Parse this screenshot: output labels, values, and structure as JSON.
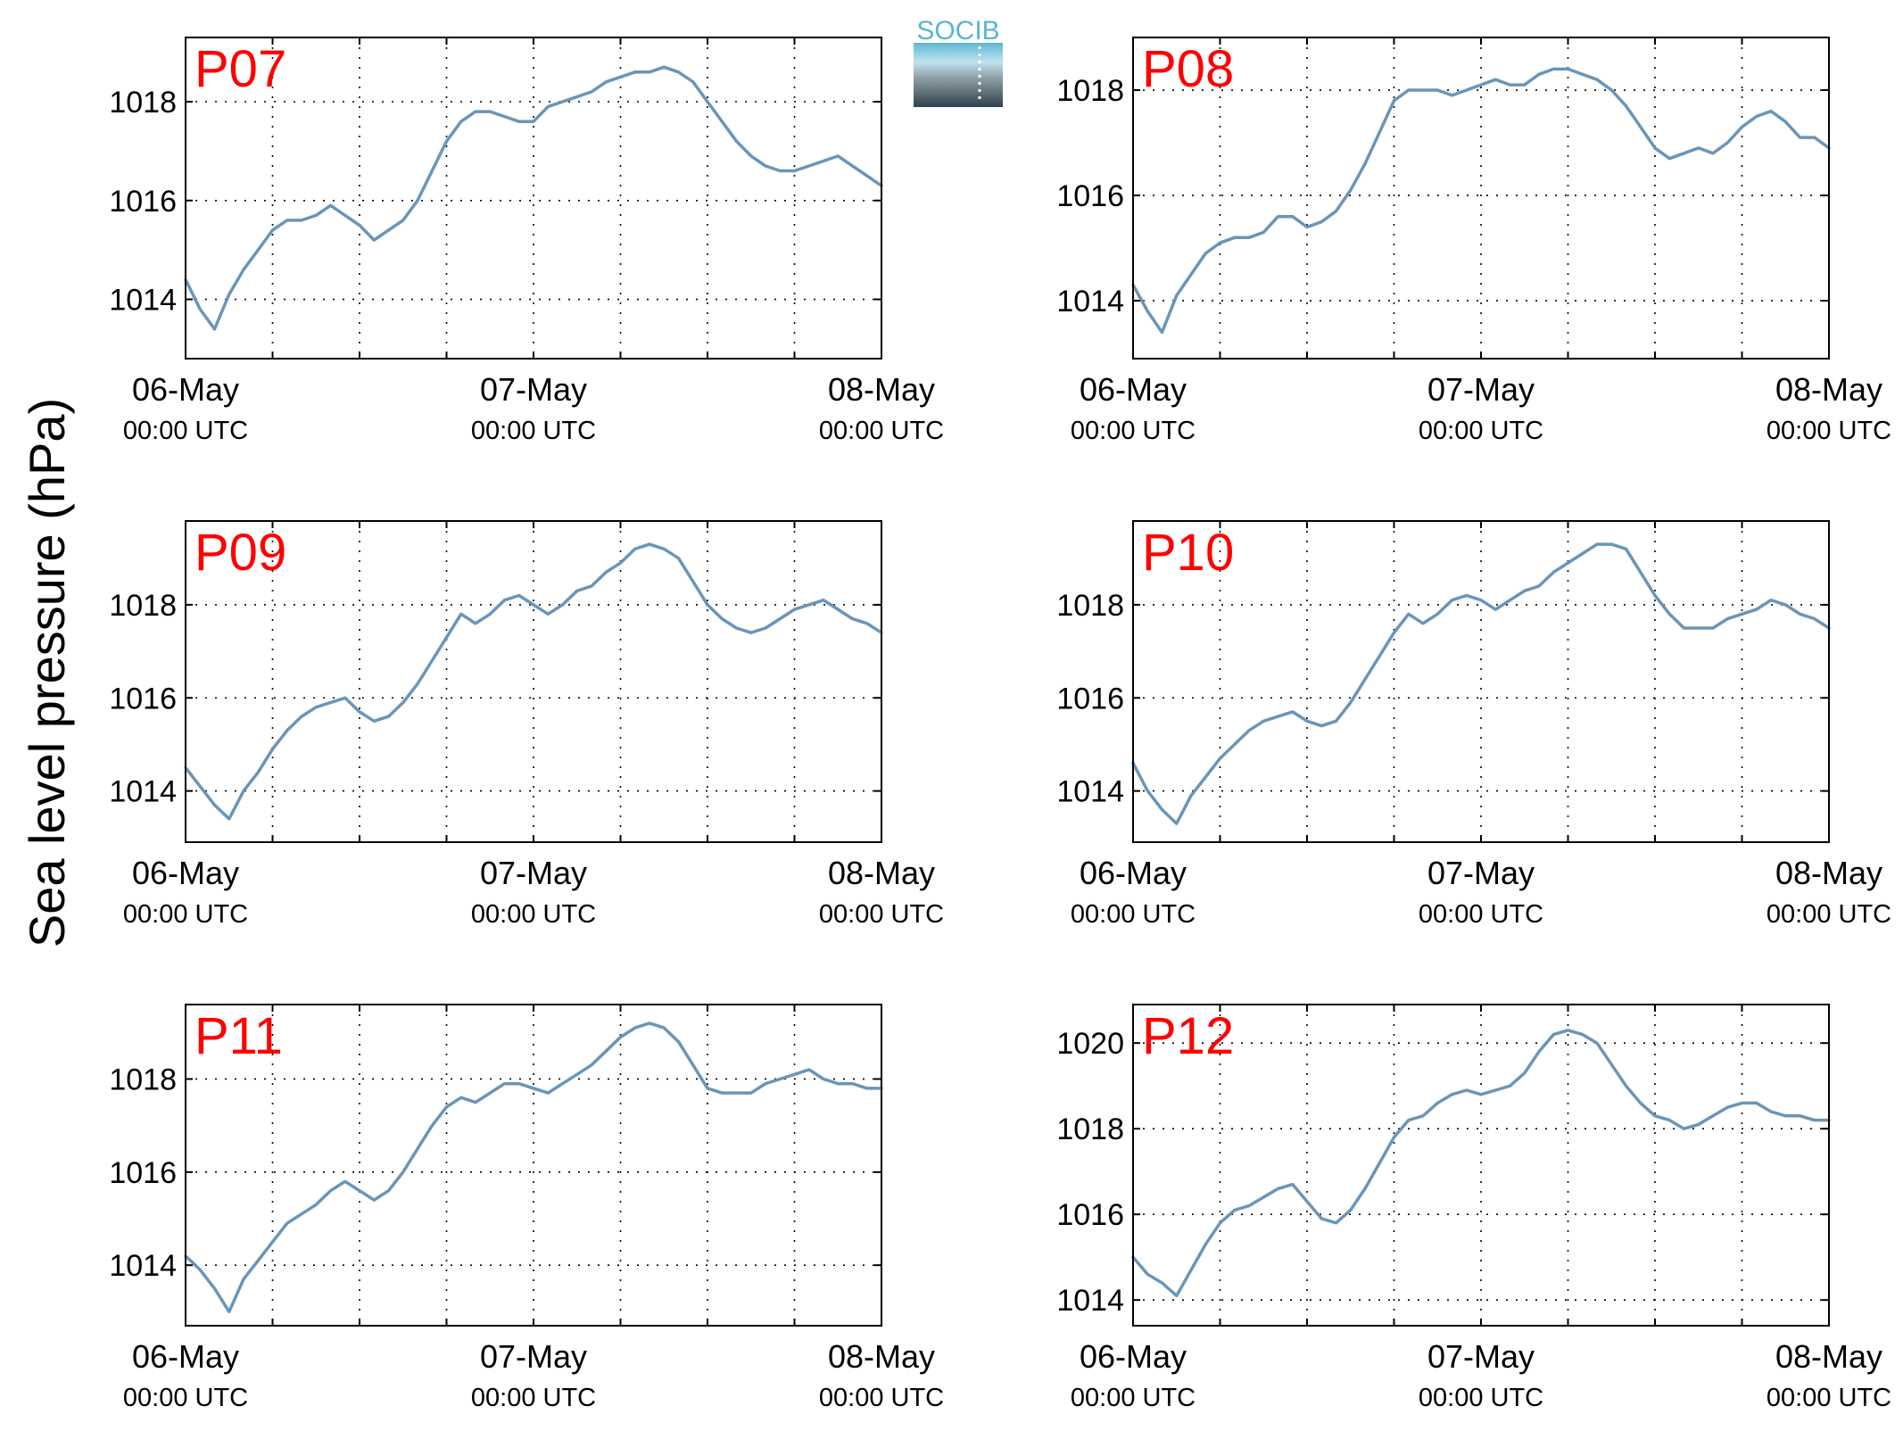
{
  "ylabel": "Sea level pressure (hPa)",
  "logo": {
    "text": "SOCIB"
  },
  "colors": {
    "line": "#6a95b8",
    "panel_label": "#ff0000",
    "axis": "#000000"
  },
  "x_axis": {
    "range": [
      "2014-05-06T00:00Z",
      "2014-05-08T00:00Z"
    ],
    "tick_labels": [
      {
        "date": "06-May",
        "time": "00:00 UTC"
      },
      {
        "date": "07-May",
        "time": "00:00 UTC"
      },
      {
        "date": "08-May",
        "time": "00:00 UTC"
      }
    ],
    "grid": true
  },
  "chart_data": [
    {
      "type": "line",
      "label": "P07",
      "ylim": [
        1012.8,
        1019.3
      ],
      "yticks": [
        1014,
        1016,
        1018
      ],
      "x_hours": [
        0,
        1,
        2,
        3,
        4,
        5,
        6,
        7,
        8,
        9,
        10,
        11,
        12,
        13,
        14,
        15,
        16,
        17,
        18,
        19,
        20,
        21,
        22,
        23,
        24,
        25,
        26,
        27,
        28,
        29,
        30,
        31,
        32,
        33,
        34,
        35,
        36,
        37,
        38,
        39,
        40,
        41,
        42,
        43,
        44,
        45,
        46,
        47,
        48
      ],
      "values": [
        1014.4,
        1013.8,
        1013.4,
        1014.1,
        1014.6,
        1015.0,
        1015.4,
        1015.6,
        1015.6,
        1015.7,
        1015.9,
        1015.7,
        1015.5,
        1015.2,
        1015.4,
        1015.6,
        1016.0,
        1016.6,
        1017.2,
        1017.6,
        1017.8,
        1017.8,
        1017.7,
        1017.6,
        1017.6,
        1017.9,
        1018.0,
        1018.1,
        1018.2,
        1018.4,
        1018.5,
        1018.6,
        1018.6,
        1018.7,
        1018.6,
        1018.4,
        1018.0,
        1017.6,
        1017.2,
        1016.9,
        1016.7,
        1016.6,
        1016.6,
        1016.7,
        1016.8,
        1016.9,
        1016.7,
        1016.5,
        1016.3
      ]
    },
    {
      "type": "line",
      "label": "P08",
      "ylim": [
        1012.9,
        1019.0
      ],
      "yticks": [
        1014,
        1016,
        1018
      ],
      "x_hours": [
        0,
        1,
        2,
        3,
        4,
        5,
        6,
        7,
        8,
        9,
        10,
        11,
        12,
        13,
        14,
        15,
        16,
        17,
        18,
        19,
        20,
        21,
        22,
        23,
        24,
        25,
        26,
        27,
        28,
        29,
        30,
        31,
        32,
        33,
        34,
        35,
        36,
        37,
        38,
        39,
        40,
        41,
        42,
        43,
        44,
        45,
        46,
        47,
        48
      ],
      "values": [
        1014.3,
        1013.8,
        1013.4,
        1014.1,
        1014.5,
        1014.9,
        1015.1,
        1015.2,
        1015.2,
        1015.3,
        1015.6,
        1015.6,
        1015.4,
        1015.5,
        1015.7,
        1016.1,
        1016.6,
        1017.2,
        1017.8,
        1018.0,
        1018.0,
        1018.0,
        1017.9,
        1018.0,
        1018.1,
        1018.2,
        1018.1,
        1018.1,
        1018.3,
        1018.4,
        1018.4,
        1018.3,
        1018.2,
        1018.0,
        1017.7,
        1017.3,
        1016.9,
        1016.7,
        1016.8,
        1016.9,
        1016.8,
        1017.0,
        1017.3,
        1017.5,
        1017.6,
        1017.4,
        1017.1,
        1017.1,
        1016.9
      ]
    },
    {
      "type": "line",
      "label": "P09",
      "ylim": [
        1012.9,
        1019.8
      ],
      "yticks": [
        1014,
        1016,
        1018
      ],
      "x_hours": [
        0,
        1,
        2,
        3,
        4,
        5,
        6,
        7,
        8,
        9,
        10,
        11,
        12,
        13,
        14,
        15,
        16,
        17,
        18,
        19,
        20,
        21,
        22,
        23,
        24,
        25,
        26,
        27,
        28,
        29,
        30,
        31,
        32,
        33,
        34,
        35,
        36,
        37,
        38,
        39,
        40,
        41,
        42,
        43,
        44,
        45,
        46,
        47,
        48
      ],
      "values": [
        1014.5,
        1014.1,
        1013.7,
        1013.4,
        1014.0,
        1014.4,
        1014.9,
        1015.3,
        1015.6,
        1015.8,
        1015.9,
        1016.0,
        1015.7,
        1015.5,
        1015.6,
        1015.9,
        1016.3,
        1016.8,
        1017.3,
        1017.8,
        1017.6,
        1017.8,
        1018.1,
        1018.2,
        1018.0,
        1017.8,
        1018.0,
        1018.3,
        1018.4,
        1018.7,
        1018.9,
        1019.2,
        1019.3,
        1019.2,
        1019.0,
        1018.5,
        1018.0,
        1017.7,
        1017.5,
        1017.4,
        1017.5,
        1017.7,
        1017.9,
        1018.0,
        1018.1,
        1017.9,
        1017.7,
        1017.6,
        1017.4
      ]
    },
    {
      "type": "line",
      "label": "P10",
      "ylim": [
        1012.9,
        1019.8
      ],
      "yticks": [
        1014,
        1016,
        1018
      ],
      "x_hours": [
        0,
        1,
        2,
        3,
        4,
        5,
        6,
        7,
        8,
        9,
        10,
        11,
        12,
        13,
        14,
        15,
        16,
        17,
        18,
        19,
        20,
        21,
        22,
        23,
        24,
        25,
        26,
        27,
        28,
        29,
        30,
        31,
        32,
        33,
        34,
        35,
        36,
        37,
        38,
        39,
        40,
        41,
        42,
        43,
        44,
        45,
        46,
        47,
        48
      ],
      "values": [
        1014.6,
        1014.0,
        1013.6,
        1013.3,
        1013.9,
        1014.3,
        1014.7,
        1015.0,
        1015.3,
        1015.5,
        1015.6,
        1015.7,
        1015.5,
        1015.4,
        1015.5,
        1015.9,
        1016.4,
        1016.9,
        1017.4,
        1017.8,
        1017.6,
        1017.8,
        1018.1,
        1018.2,
        1018.1,
        1017.9,
        1018.1,
        1018.3,
        1018.4,
        1018.7,
        1018.9,
        1019.1,
        1019.3,
        1019.3,
        1019.2,
        1018.7,
        1018.2,
        1017.8,
        1017.5,
        1017.5,
        1017.5,
        1017.7,
        1017.8,
        1017.9,
        1018.1,
        1018.0,
        1017.8,
        1017.7,
        1017.5
      ]
    },
    {
      "type": "line",
      "label": "P11",
      "ylim": [
        1012.7,
        1019.6
      ],
      "yticks": [
        1014,
        1016,
        1018
      ],
      "x_hours": [
        0,
        1,
        2,
        3,
        4,
        5,
        6,
        7,
        8,
        9,
        10,
        11,
        12,
        13,
        14,
        15,
        16,
        17,
        18,
        19,
        20,
        21,
        22,
        23,
        24,
        25,
        26,
        27,
        28,
        29,
        30,
        31,
        32,
        33,
        34,
        35,
        36,
        37,
        38,
        39,
        40,
        41,
        42,
        43,
        44,
        45,
        46,
        47,
        48
      ],
      "values": [
        1014.2,
        1013.9,
        1013.5,
        1013.0,
        1013.7,
        1014.1,
        1014.5,
        1014.9,
        1015.1,
        1015.3,
        1015.6,
        1015.8,
        1015.6,
        1015.4,
        1015.6,
        1016.0,
        1016.5,
        1017.0,
        1017.4,
        1017.6,
        1017.5,
        1017.7,
        1017.9,
        1017.9,
        1017.8,
        1017.7,
        1017.9,
        1018.1,
        1018.3,
        1018.6,
        1018.9,
        1019.1,
        1019.2,
        1019.1,
        1018.8,
        1018.3,
        1017.8,
        1017.7,
        1017.7,
        1017.7,
        1017.9,
        1018.0,
        1018.1,
        1018.2,
        1018.0,
        1017.9,
        1017.9,
        1017.8,
        1017.8
      ]
    },
    {
      "type": "line",
      "label": "P12",
      "ylim": [
        1013.4,
        1020.9
      ],
      "yticks": [
        1014,
        1016,
        1018,
        1020
      ],
      "x_hours": [
        0,
        1,
        2,
        3,
        4,
        5,
        6,
        7,
        8,
        9,
        10,
        11,
        12,
        13,
        14,
        15,
        16,
        17,
        18,
        19,
        20,
        21,
        22,
        23,
        24,
        25,
        26,
        27,
        28,
        29,
        30,
        31,
        32,
        33,
        34,
        35,
        36,
        37,
        38,
        39,
        40,
        41,
        42,
        43,
        44,
        45,
        46,
        47,
        48
      ],
      "values": [
        1015.0,
        1014.6,
        1014.4,
        1014.1,
        1014.7,
        1015.3,
        1015.8,
        1016.1,
        1016.2,
        1016.4,
        1016.6,
        1016.7,
        1016.3,
        1015.9,
        1015.8,
        1016.1,
        1016.6,
        1017.2,
        1017.8,
        1018.2,
        1018.3,
        1018.6,
        1018.8,
        1018.9,
        1018.8,
        1018.9,
        1019.0,
        1019.3,
        1019.8,
        1020.2,
        1020.3,
        1020.2,
        1020.0,
        1019.5,
        1019.0,
        1018.6,
        1018.3,
        1018.2,
        1018.0,
        1018.1,
        1018.3,
        1018.5,
        1018.6,
        1018.6,
        1018.4,
        1018.3,
        1018.3,
        1018.2,
        1018.2
      ]
    }
  ]
}
